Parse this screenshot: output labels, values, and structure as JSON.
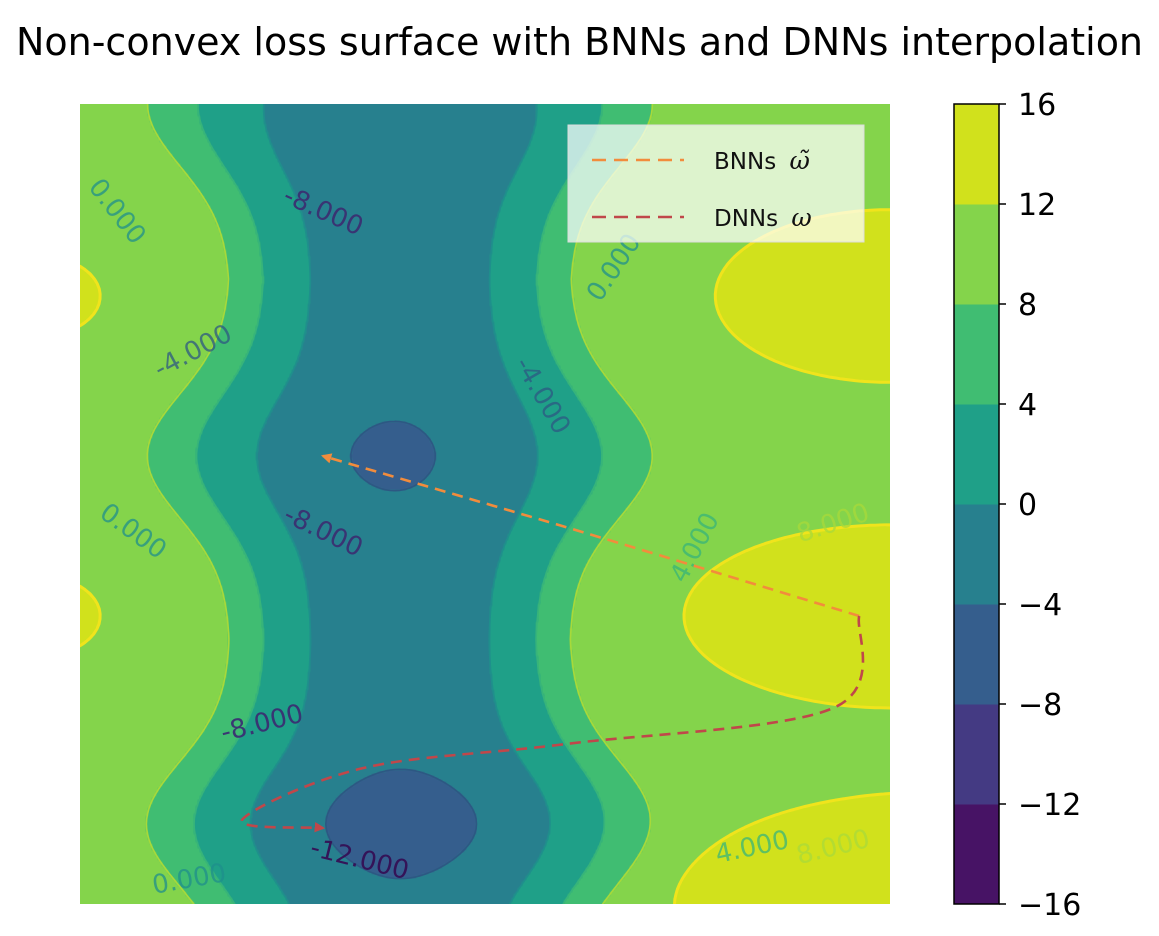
{
  "chart_data": {
    "type": "contour",
    "title": "Non-convex loss surface with BNNs and DNNs interpolation",
    "xlabel": "",
    "ylabel": "",
    "grid": false,
    "legend_position": "top-right",
    "levels": [
      -16,
      -12,
      -8,
      -4,
      0,
      4,
      8,
      12,
      16
    ],
    "colorbar_ticks": [
      "16",
      "12",
      "8",
      "4",
      "0",
      "−4",
      "−8",
      "−12",
      "−16"
    ],
    "band_colors": [
      "#471365",
      "#443a83",
      "#355e8d",
      "#27808e",
      "#1fa088",
      "#40bd72",
      "#84d44b",
      "#d1e11c"
    ],
    "contour_labels": [
      {
        "text": "-8.000",
        "level": -8
      },
      {
        "text": "-8.000",
        "level": -8
      },
      {
        "text": "-8.000",
        "level": -8
      },
      {
        "text": "-12.000",
        "level": -12
      },
      {
        "text": "-4.000",
        "level": -4
      },
      {
        "text": "-4.000",
        "level": -4
      },
      {
        "text": "0.000",
        "level": 0
      },
      {
        "text": "0.000",
        "level": 0
      },
      {
        "text": "0.000",
        "level": 0
      },
      {
        "text": "0.000",
        "level": 0
      },
      {
        "text": "4.000",
        "level": 4
      },
      {
        "text": "4.000",
        "level": 4
      },
      {
        "text": "8.000",
        "level": 8
      },
      {
        "text": "8.000",
        "level": 8
      }
    ],
    "series": [
      {
        "name": "BNNs",
        "symbol": "ω̃",
        "color": "#f28c3c",
        "style": "dashed",
        "path": [
          [
            0.962,
            0.64
          ],
          [
            0.62,
            0.535
          ],
          [
            0.3,
            0.44
          ]
        ]
      },
      {
        "name": "DNNs",
        "symbol": "ω",
        "color": "#c0474a",
        "style": "dashed",
        "path": [
          [
            0.962,
            0.64
          ],
          [
            0.93,
            0.755
          ],
          [
            0.6,
            0.8
          ],
          [
            0.35,
            0.83
          ],
          [
            0.2,
            0.895
          ],
          [
            0.3,
            0.905
          ]
        ]
      }
    ]
  }
}
